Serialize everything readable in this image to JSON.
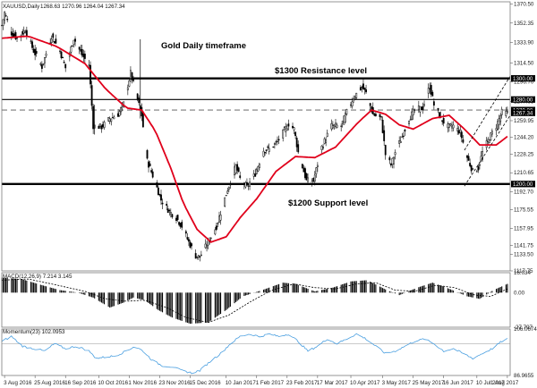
{
  "header": {
    "symbol": "XAUUSD,Daily",
    "ohlc": "1268.63 1270.96 1264.04 1267.34"
  },
  "colors": {
    "candle_up": "#ffffff",
    "candle_down": "#000000",
    "moving_average": "#e0001b",
    "macd_signal": "#000000",
    "momentum": "#4a9fe0",
    "momentum_ref": "#aaaaaa",
    "support_resistance": "#000000",
    "channel": "#000000",
    "price_marker": "#000000"
  },
  "chart_data": [
    {
      "type": "candlestick",
      "panel": "price",
      "annotations": {
        "timeframe": "Gold Daily timeframe",
        "resistance": "$1300 Resistance level",
        "support": "$1200 Support level"
      },
      "ylim": [
        1117.75,
        1372.5
      ],
      "y_ticks": [
        "1370.50",
        "1352.35",
        "1333.90",
        "1314.50",
        "1296.70",
        "1277.95",
        "1259.95",
        "1244.20",
        "1228.25",
        "1210.65",
        "1192.70",
        "1175.55",
        "1157.95",
        "1141.75",
        "1133.50",
        "1117.75"
      ],
      "price_labels": [
        "1300.00",
        "1280.00",
        "1270.00",
        "1267.34",
        "1200.00"
      ],
      "horizontal_levels": [
        {
          "value": 1300,
          "style": "solid-thick"
        },
        {
          "value": 1280,
          "style": "solid"
        },
        {
          "value": 1270,
          "style": "dashed"
        },
        {
          "value": 1200,
          "style": "solid-thick"
        }
      ],
      "channel": {
        "start_date": "2017-07-01",
        "end_date": "2017-08-01",
        "lower_start": 1198,
        "lower_end": 1265,
        "upper_start": 1232,
        "upper_end": 1302
      },
      "x_ticks": [
        "3 Aug 2016",
        "25 Aug 2016",
        "16 Sep 2016",
        "10 Oct 2016",
        "1 Nov 2016",
        "23 Nov 2016",
        "15 Dec 2016",
        "10 Jan 2017",
        "1 Feb 2017",
        "23 Feb 2017",
        "17 Mar 2017",
        "10 Apr 2017",
        "3 May 2017",
        "25 May 2017",
        "16 Jun 2017",
        "10 Jul 2017",
        "1 Aug 2017"
      ],
      "closes_by_date": [
        [
          "2016-08-01",
          1350
        ],
        [
          "2016-08-03",
          1362
        ],
        [
          "2016-08-08",
          1343
        ],
        [
          "2016-08-12",
          1338
        ],
        [
          "2016-08-18",
          1346
        ],
        [
          "2016-08-24",
          1326
        ],
        [
          "2016-08-30",
          1311
        ],
        [
          "2016-09-06",
          1340
        ],
        [
          "2016-09-12",
          1326
        ],
        [
          "2016-09-16",
          1310
        ],
        [
          "2016-09-22",
          1338
        ],
        [
          "2016-09-28",
          1322
        ],
        [
          "2016-10-03",
          1313
        ],
        [
          "2016-10-06",
          1255
        ],
        [
          "2016-10-12",
          1254
        ],
        [
          "2016-10-18",
          1262
        ],
        [
          "2016-10-24",
          1266
        ],
        [
          "2016-10-28",
          1276
        ],
        [
          "2016-11-02",
          1305
        ],
        [
          "2016-11-07",
          1280
        ],
        [
          "2016-11-10",
          1265
        ],
        [
          "2016-11-14",
          1222
        ],
        [
          "2016-11-18",
          1208
        ],
        [
          "2016-11-24",
          1185
        ],
        [
          "2016-11-30",
          1174
        ],
        [
          "2016-12-05",
          1168
        ],
        [
          "2016-12-09",
          1160
        ],
        [
          "2016-12-14",
          1145
        ],
        [
          "2016-12-19",
          1132
        ],
        [
          "2016-12-22",
          1131
        ],
        [
          "2016-12-28",
          1145
        ],
        [
          "2017-01-03",
          1160
        ],
        [
          "2017-01-06",
          1173
        ],
        [
          "2017-01-11",
          1195
        ],
        [
          "2017-01-17",
          1217
        ],
        [
          "2017-01-20",
          1205
        ],
        [
          "2017-01-25",
          1197
        ],
        [
          "2017-01-31",
          1210
        ],
        [
          "2017-02-06",
          1232
        ],
        [
          "2017-02-10",
          1233
        ],
        [
          "2017-02-16",
          1240
        ],
        [
          "2017-02-24",
          1257
        ],
        [
          "2017-02-28",
          1252
        ],
        [
          "2017-03-03",
          1230
        ],
        [
          "2017-03-09",
          1203
        ],
        [
          "2017-03-14",
          1203
        ],
        [
          "2017-03-20",
          1235
        ],
        [
          "2017-03-27",
          1255
        ],
        [
          "2017-04-03",
          1255
        ],
        [
          "2017-04-07",
          1268
        ],
        [
          "2017-04-12",
          1282
        ],
        [
          "2017-04-18",
          1292
        ],
        [
          "2017-04-21",
          1286
        ],
        [
          "2017-04-26",
          1266
        ],
        [
          "2017-05-02",
          1262
        ],
        [
          "2017-05-05",
          1228
        ],
        [
          "2017-05-09",
          1218
        ],
        [
          "2017-05-12",
          1230
        ],
        [
          "2017-05-17",
          1245
        ],
        [
          "2017-05-22",
          1262
        ],
        [
          "2017-05-26",
          1270
        ],
        [
          "2017-06-01",
          1272
        ],
        [
          "2017-06-06",
          1293
        ],
        [
          "2017-06-09",
          1275
        ],
        [
          "2017-06-14",
          1262
        ],
        [
          "2017-06-19",
          1254
        ],
        [
          "2017-06-23",
          1255
        ],
        [
          "2017-06-28",
          1249
        ],
        [
          "2017-07-03",
          1225
        ],
        [
          "2017-07-07",
          1212
        ],
        [
          "2017-07-11",
          1215
        ],
        [
          "2017-07-14",
          1230
        ],
        [
          "2017-07-19",
          1244
        ],
        [
          "2017-07-24",
          1255
        ],
        [
          "2017-07-28",
          1268
        ],
        [
          "2017-08-01",
          1267
        ]
      ],
      "moving_average_by_date": [
        [
          "2016-08-01",
          1338
        ],
        [
          "2016-08-20",
          1340
        ],
        [
          "2016-09-10",
          1330
        ],
        [
          "2016-09-30",
          1314
        ],
        [
          "2016-10-15",
          1290
        ],
        [
          "2016-10-30",
          1272
        ],
        [
          "2016-11-10",
          1270
        ],
        [
          "2016-11-20",
          1250
        ],
        [
          "2016-12-01",
          1215
        ],
        [
          "2016-12-10",
          1182
        ],
        [
          "2016-12-20",
          1157
        ],
        [
          "2016-12-30",
          1145
        ],
        [
          "2017-01-10",
          1150
        ],
        [
          "2017-01-20",
          1168
        ],
        [
          "2017-02-01",
          1186
        ],
        [
          "2017-02-15",
          1212
        ],
        [
          "2017-03-01",
          1226
        ],
        [
          "2017-03-15",
          1225
        ],
        [
          "2017-03-30",
          1235
        ],
        [
          "2017-04-15",
          1258
        ],
        [
          "2017-04-25",
          1270
        ],
        [
          "2017-05-05",
          1266
        ],
        [
          "2017-05-15",
          1256
        ],
        [
          "2017-05-25",
          1252
        ],
        [
          "2017-06-08",
          1262
        ],
        [
          "2017-06-20",
          1265
        ],
        [
          "2017-07-01",
          1252
        ],
        [
          "2017-07-12",
          1237
        ],
        [
          "2017-07-24",
          1237
        ],
        [
          "2017-08-01",
          1245
        ]
      ]
    },
    {
      "type": "histogram",
      "panel": "macd",
      "label": "MACD(12,26,9) 7.214 3.145",
      "y_ticks": [
        "16.034",
        "0.00",
        "-27.797"
      ],
      "ylim": [
        -27.797,
        16.034
      ],
      "values_by_date": [
        [
          "2016-08-01",
          12
        ],
        [
          "2016-08-15",
          11
        ],
        [
          "2016-08-30",
          6
        ],
        [
          "2016-09-12",
          2
        ],
        [
          "2016-09-25",
          0
        ],
        [
          "2016-10-06",
          -4
        ],
        [
          "2016-10-18",
          -12
        ],
        [
          "2016-10-28",
          -8
        ],
        [
          "2016-11-04",
          -4
        ],
        [
          "2016-11-12",
          -6
        ],
        [
          "2016-11-22",
          -14
        ],
        [
          "2016-12-02",
          -20
        ],
        [
          "2016-12-15",
          -25
        ],
        [
          "2016-12-28",
          -24
        ],
        [
          "2017-01-10",
          -14
        ],
        [
          "2017-01-22",
          -3
        ],
        [
          "2017-02-05",
          2
        ],
        [
          "2017-02-20",
          8
        ],
        [
          "2017-03-01",
          7
        ],
        [
          "2017-03-15",
          1
        ],
        [
          "2017-03-28",
          4
        ],
        [
          "2017-04-10",
          9
        ],
        [
          "2017-04-22",
          10
        ],
        [
          "2017-05-06",
          2
        ],
        [
          "2017-05-15",
          -2
        ],
        [
          "2017-05-28",
          4
        ],
        [
          "2017-06-08",
          8
        ],
        [
          "2017-06-18",
          4
        ],
        [
          "2017-07-03",
          -3
        ],
        [
          "2017-07-12",
          -5
        ],
        [
          "2017-07-22",
          2
        ],
        [
          "2017-08-01",
          7
        ]
      ],
      "signal_by_date": [
        [
          "2016-08-01",
          10
        ],
        [
          "2016-08-20",
          11
        ],
        [
          "2016-09-10",
          6
        ],
        [
          "2016-09-30",
          1
        ],
        [
          "2016-10-15",
          -5
        ],
        [
          "2016-10-30",
          -7
        ],
        [
          "2016-11-12",
          -6
        ],
        [
          "2016-11-28",
          -12
        ],
        [
          "2016-12-12",
          -20
        ],
        [
          "2016-12-28",
          -24
        ],
        [
          "2017-01-12",
          -18
        ],
        [
          "2017-01-28",
          -7
        ],
        [
          "2017-02-12",
          2
        ],
        [
          "2017-02-28",
          7
        ],
        [
          "2017-03-15",
          4
        ],
        [
          "2017-03-30",
          3
        ],
        [
          "2017-04-14",
          7
        ],
        [
          "2017-04-28",
          8
        ],
        [
          "2017-05-12",
          2
        ],
        [
          "2017-05-26",
          1
        ],
        [
          "2017-06-10",
          6
        ],
        [
          "2017-06-24",
          4
        ],
        [
          "2017-07-08",
          -2
        ],
        [
          "2017-07-20",
          -3
        ],
        [
          "2017-08-01",
          3
        ]
      ]
    },
    {
      "type": "line",
      "panel": "momentum",
      "label": "Momentum(23) 102.0953",
      "y_ticks": [
        "106.0674",
        "86.9655"
      ],
      "ylim": [
        86.9655,
        106.0674
      ],
      "reference": 100,
      "values_by_date": [
        [
          "2016-08-01",
          101
        ],
        [
          "2016-08-08",
          103
        ],
        [
          "2016-08-16",
          99
        ],
        [
          "2016-08-24",
          98
        ],
        [
          "2016-09-01",
          97
        ],
        [
          "2016-09-08",
          100
        ],
        [
          "2016-09-16",
          98
        ],
        [
          "2016-09-24",
          99
        ],
        [
          "2016-10-03",
          97
        ],
        [
          "2016-10-08",
          94
        ],
        [
          "2016-10-14",
          94.5
        ],
        [
          "2016-10-22",
          95
        ],
        [
          "2016-10-30",
          97
        ],
        [
          "2016-11-05",
          99
        ],
        [
          "2016-11-11",
          97
        ],
        [
          "2016-11-18",
          93
        ],
        [
          "2016-11-25",
          91
        ],
        [
          "2016-12-02",
          90.5
        ],
        [
          "2016-12-09",
          89
        ],
        [
          "2016-12-16",
          88
        ],
        [
          "2016-12-22",
          89
        ],
        [
          "2016-12-30",
          93
        ],
        [
          "2017-01-06",
          96
        ],
        [
          "2017-01-13",
          100
        ],
        [
          "2017-01-20",
          103
        ],
        [
          "2017-01-27",
          104
        ],
        [
          "2017-02-03",
          103
        ],
        [
          "2017-02-10",
          104
        ],
        [
          "2017-02-17",
          103
        ],
        [
          "2017-02-24",
          104
        ],
        [
          "2017-03-03",
          101
        ],
        [
          "2017-03-10",
          97
        ],
        [
          "2017-03-17",
          99
        ],
        [
          "2017-03-24",
          102
        ],
        [
          "2017-03-31",
          100
        ],
        [
          "2017-04-07",
          102
        ],
        [
          "2017-04-14",
          104
        ],
        [
          "2017-04-21",
          102
        ],
        [
          "2017-04-28",
          99
        ],
        [
          "2017-05-05",
          96
        ],
        [
          "2017-05-12",
          97
        ],
        [
          "2017-05-19",
          99
        ],
        [
          "2017-05-26",
          101
        ],
        [
          "2017-06-02",
          102
        ],
        [
          "2017-06-09",
          100
        ],
        [
          "2017-06-16",
          97
        ],
        [
          "2017-06-23",
          98
        ],
        [
          "2017-06-30",
          96
        ],
        [
          "2017-07-07",
          94
        ],
        [
          "2017-07-14",
          96
        ],
        [
          "2017-07-21",
          98
        ],
        [
          "2017-07-28",
          101
        ],
        [
          "2017-08-01",
          102
        ]
      ]
    }
  ]
}
